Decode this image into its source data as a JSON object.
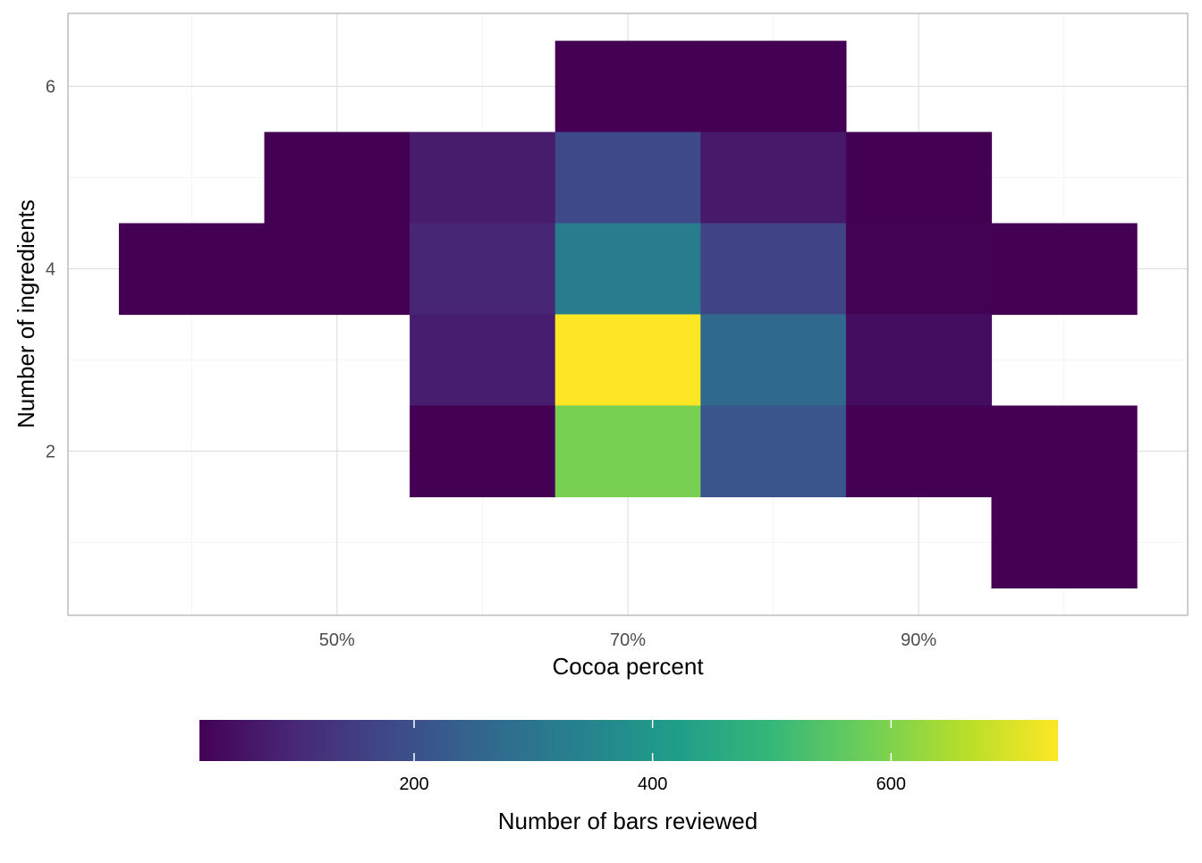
{
  "chart_data": {
    "type": "heatmap",
    "xlabel": "Cocoa percent",
    "ylabel": "Number of ingredients",
    "x_axis": {
      "range": [
        0.315,
        1.085
      ],
      "bin_width": 0.1,
      "major_ticks": [
        0.5,
        0.7,
        0.9
      ],
      "major_tick_labels": [
        "50%",
        "70%",
        "90%"
      ],
      "minor_ticks": [
        0.4,
        0.6,
        0.8,
        1.0
      ]
    },
    "y_axis": {
      "range": [
        0.2,
        6.8
      ],
      "major_ticks": [
        2,
        4,
        6
      ],
      "major_tick_labels": [
        "2",
        "4",
        "6"
      ],
      "minor_ticks": [
        1,
        3,
        5
      ]
    },
    "cells": [
      {
        "x": 0.7,
        "y": 6,
        "count": 12
      },
      {
        "x": 0.8,
        "y": 6,
        "count": 14
      },
      {
        "x": 0.5,
        "y": 5,
        "count": 8
      },
      {
        "x": 0.6,
        "y": 5,
        "count": 75
      },
      {
        "x": 0.7,
        "y": 5,
        "count": 180
      },
      {
        "x": 0.8,
        "y": 5,
        "count": 70
      },
      {
        "x": 0.9,
        "y": 5,
        "count": 12
      },
      {
        "x": 0.4,
        "y": 4,
        "count": 5
      },
      {
        "x": 0.5,
        "y": 4,
        "count": 12
      },
      {
        "x": 0.6,
        "y": 4,
        "count": 95
      },
      {
        "x": 0.7,
        "y": 4,
        "count": 320
      },
      {
        "x": 0.8,
        "y": 4,
        "count": 165
      },
      {
        "x": 0.9,
        "y": 4,
        "count": 22
      },
      {
        "x": 1.0,
        "y": 4,
        "count": 10
      },
      {
        "x": 0.6,
        "y": 3,
        "count": 80
      },
      {
        "x": 0.7,
        "y": 3,
        "count": 740
      },
      {
        "x": 0.8,
        "y": 3,
        "count": 260
      },
      {
        "x": 0.9,
        "y": 3,
        "count": 45
      },
      {
        "x": 0.6,
        "y": 2,
        "count": 12
      },
      {
        "x": 0.7,
        "y": 2,
        "count": 590
      },
      {
        "x": 0.8,
        "y": 2,
        "count": 210
      },
      {
        "x": 0.9,
        "y": 2,
        "count": 20
      },
      {
        "x": 1.0,
        "y": 2,
        "count": 18
      },
      {
        "x": 1.0,
        "y": 1,
        "count": 15
      }
    ],
    "colorbar": {
      "title": "Number of bars reviewed",
      "range": [
        20,
        740
      ],
      "ticks": [
        200,
        400,
        600
      ],
      "tick_labels": [
        "200",
        "400",
        "600"
      ],
      "colormap": "viridis",
      "placement": "bottom"
    },
    "colors": {
      "viridis": [
        "#440154",
        "#482878",
        "#3e4989",
        "#31688e",
        "#26828e",
        "#1f9e89",
        "#35b779",
        "#6ece58",
        "#b5de2b",
        "#fde725"
      ],
      "panel_border": "#b3b3b3",
      "grid_major": "#dedede",
      "grid_minor": "#ededed"
    },
    "grid": true,
    "legend_placement": "bottom"
  }
}
